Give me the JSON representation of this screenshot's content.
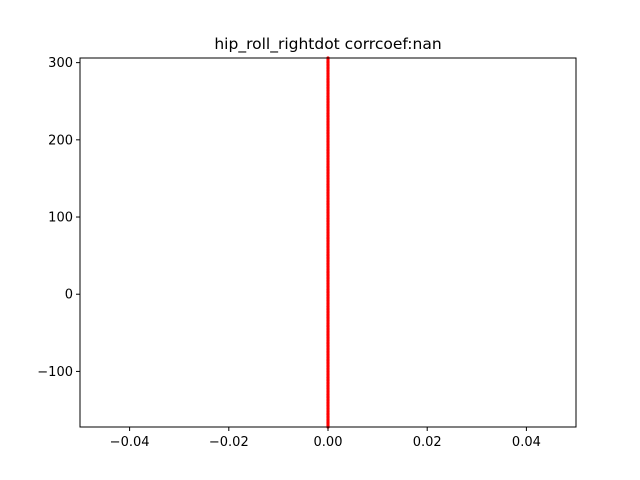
{
  "chart_data": {
    "type": "scatter",
    "title": "hip_roll_rightdot corrcoef:nan",
    "xlabel": "",
    "ylabel": "",
    "xlim": [
      -0.05,
      0.05
    ],
    "ylim": [
      -172,
      306
    ],
    "xticks": [
      -0.04,
      -0.02,
      0.0,
      0.02,
      0.04
    ],
    "xtick_labels": [
      "−0.04",
      "−0.02",
      "0.00",
      "0.02",
      "0.04"
    ],
    "yticks": [
      -100,
      0,
      100,
      200,
      300
    ],
    "ytick_labels": [
      "−100",
      "0",
      "100",
      "200",
      "300"
    ],
    "grid": false,
    "series": [
      {
        "color": "#ff0000",
        "points_x_constant": 0.0,
        "y_range": [
          -172,
          306
        ]
      }
    ]
  }
}
